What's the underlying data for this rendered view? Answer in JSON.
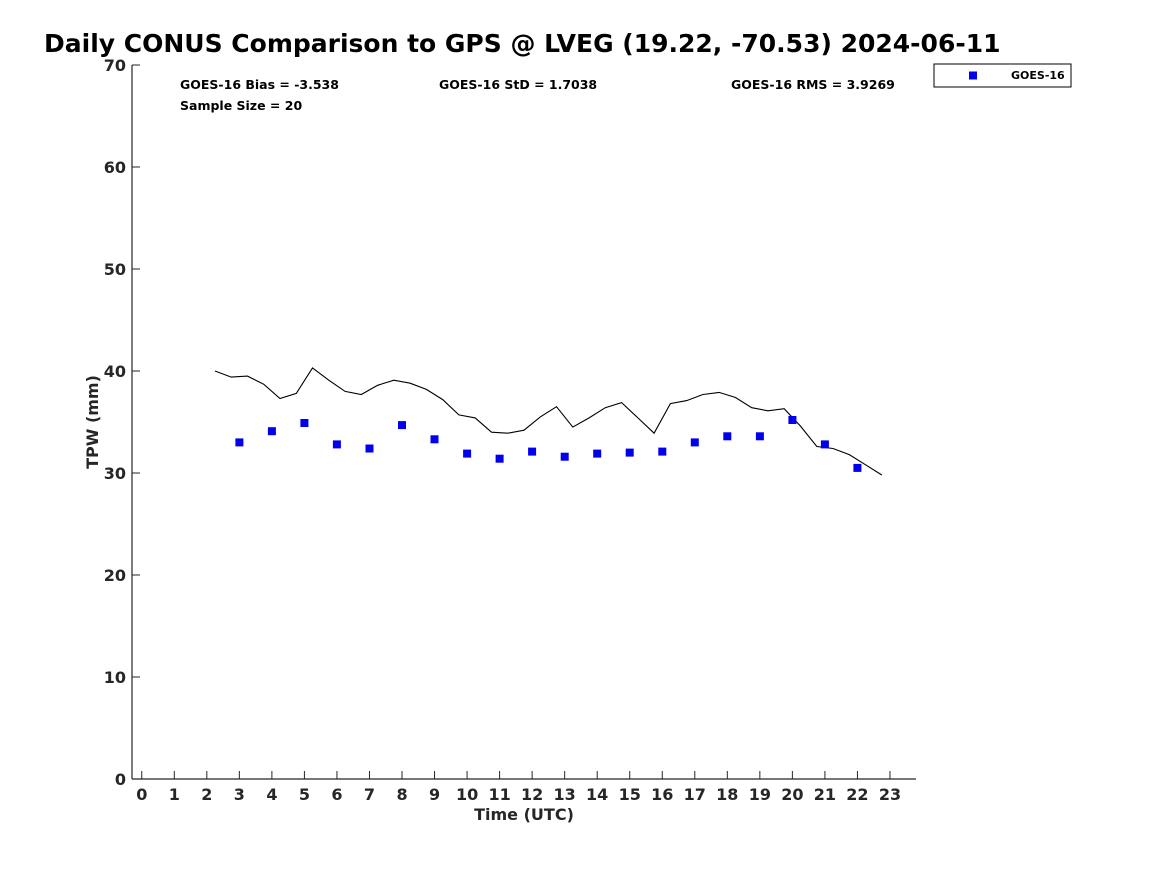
{
  "chart_data": {
    "type": "scatter",
    "title": "Daily CONUS Comparison to GPS @ LVEG (19.22, -70.53) 2024-06-11",
    "xlabel": "Time (UTC)",
    "ylabel": "TPW (mm)",
    "xlim": [
      -0.3,
      23.8
    ],
    "ylim": [
      0,
      70
    ],
    "xticks": [
      0,
      1,
      2,
      3,
      4,
      5,
      6,
      7,
      8,
      9,
      10,
      11,
      12,
      13,
      14,
      15,
      16,
      17,
      18,
      19,
      20,
      21,
      22,
      23
    ],
    "yticks": [
      0,
      10,
      20,
      30,
      40,
      50,
      60,
      70
    ],
    "grid": false,
    "legend_position": "outside-top-right",
    "series": [
      {
        "name": "GOES-16",
        "kind": "marker",
        "color": "#0000ee",
        "x": [
          3,
          4,
          5,
          6,
          7,
          8,
          9,
          10,
          11,
          12,
          13,
          14,
          15,
          16,
          17,
          18,
          19,
          20,
          21,
          22
        ],
        "y": [
          33.0,
          34.1,
          34.9,
          32.8,
          32.4,
          34.7,
          33.3,
          31.9,
          31.4,
          32.1,
          31.6,
          31.9,
          32.0,
          32.1,
          33.0,
          33.6,
          33.6,
          35.2,
          32.8,
          30.5
        ]
      },
      {
        "kind": "line",
        "color": "#000000",
        "x": [
          2.25,
          2.75,
          3.25,
          3.75,
          4.25,
          4.75,
          5.25,
          5.75,
          6.25,
          6.75,
          7.25,
          7.75,
          8.25,
          8.75,
          9.25,
          9.75,
          10.25,
          10.75,
          11.25,
          11.75,
          12.25,
          12.75,
          13.25,
          13.75,
          14.25,
          14.75,
          15.25,
          15.75,
          16.25,
          16.75,
          17.25,
          17.75,
          18.25,
          18.75,
          19.25,
          19.75,
          20.25,
          20.75,
          21.25,
          21.75,
          22.25,
          22.75
        ],
        "y": [
          40.0,
          39.4,
          39.5,
          38.7,
          37.3,
          37.8,
          40.3,
          39.1,
          38.0,
          37.7,
          38.6,
          39.1,
          38.8,
          38.2,
          37.2,
          35.7,
          35.4,
          34.0,
          33.9,
          34.2,
          35.5,
          36.5,
          34.5,
          35.4,
          36.4,
          36.9,
          35.4,
          33.9,
          36.8,
          37.1,
          37.7,
          37.9,
          37.4,
          36.4,
          36.1,
          36.3,
          34.6,
          32.6,
          32.4,
          31.8,
          30.8,
          29.8
        ]
      }
    ],
    "stats": {
      "bias": "GOES-16 Bias = -3.538",
      "std": "GOES-16 StD = 1.7038",
      "rms": "GOES-16 RMS = 3.9269",
      "sample_size": "Sample Size = 20"
    },
    "legend": {
      "entries": [
        "GOES-16"
      ]
    }
  }
}
